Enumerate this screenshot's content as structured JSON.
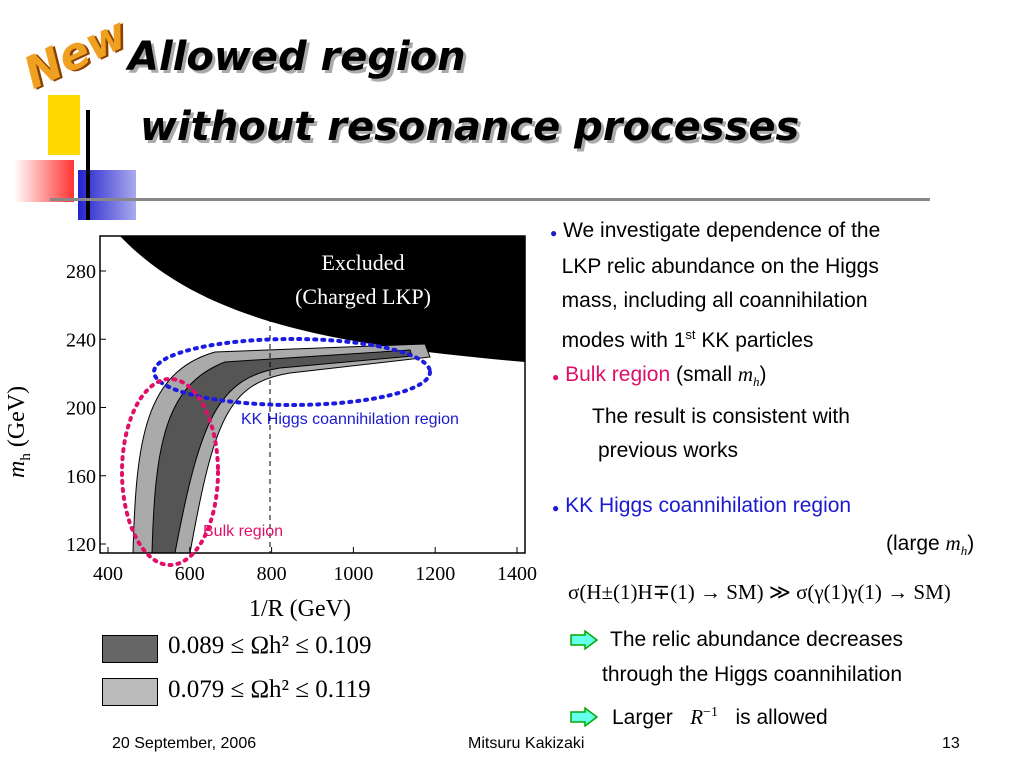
{
  "badge": "New",
  "title": {
    "line1": "Allowed region",
    "line2": "without resonance processes"
  },
  "plot": {
    "excluded": [
      "Excluded",
      "(Charged LKP)"
    ],
    "x_label": "1/R (GeV)",
    "y_label": "m",
    "y_label_sub": "h",
    "y_label_unit": "(GeV)",
    "xticks": [
      400,
      600,
      800,
      1000,
      1200,
      1400
    ],
    "yticks": [
      120,
      160,
      200,
      240,
      280
    ],
    "annotations": {
      "kk": "KK Higgs coannihilation region",
      "bulk": "Bulk region"
    }
  },
  "legend": [
    "0.089 ≤ Ωh² ≤ 0.109",
    "0.079 ≤ Ωh² ≤ 0.119"
  ],
  "bullets": {
    "b1": [
      "We investigate dependence of the",
      "LKP relic abundance on the Higgs",
      "mass, including all coannihilation",
      "modes with 1"
    ],
    "b1_sup": "st",
    "b1_end": " KK particles",
    "b2_head": "Bulk region",
    "b2_paren": [
      "(small",
      "m",
      "h",
      ")"
    ],
    "b2_text": [
      "The result is consistent with",
      "previous works"
    ],
    "b3_head": "KK Higgs coannihilation region",
    "b3_paren": [
      "(large",
      "m",
      "h",
      ")"
    ],
    "formula": "σ(H±(1)H∓(1) → SM) ≫ σ(γ(1)γ(1) → SM)",
    "arrow1": [
      "The relic abundance decreases",
      "through the Higgs coannihilation"
    ],
    "arrow2": [
      "Larger",
      "R",
      "−1",
      "is allowed"
    ]
  },
  "footer": {
    "date": "20 September, 2006",
    "author": "Mitsuru Kakizaki",
    "page": "13"
  }
}
